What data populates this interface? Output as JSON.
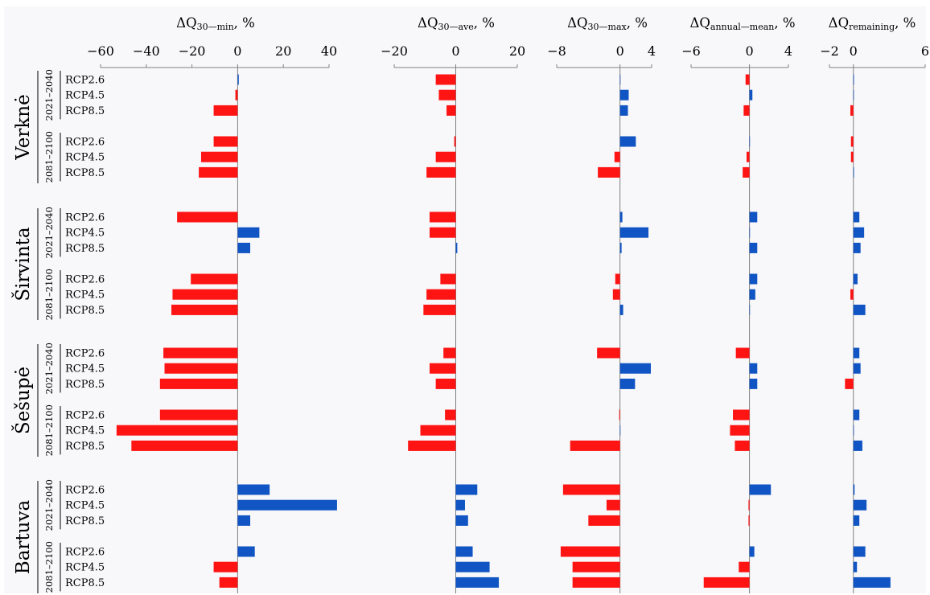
{
  "colors": {
    "positive": "#1155c4",
    "negative": "#ff1414",
    "axis": "#808080",
    "background": "#f8f8fa"
  },
  "chart_data": {
    "type": "bar",
    "orientation": "horizontal",
    "rows": [
      "RCP2.6",
      "RCP4.5",
      "RCP8.5"
    ],
    "periods": [
      "2021–2040",
      "2081–2100"
    ],
    "rivers": [
      "Verknė",
      "Širvinta",
      "Šešupė",
      "Bartuva"
    ],
    "panels": [
      {
        "title_main": "ΔQ",
        "title_sub": "30—min",
        "title_tail": ", %",
        "xlim": [
          -60,
          40
        ],
        "ticks": [
          -60,
          -40,
          -20,
          0,
          20,
          40
        ],
        "tick_labels": [
          "−60",
          "−40",
          "−20",
          "0",
          "20",
          "40"
        ],
        "values": [
          [
            0.5,
            -1,
            -10.5
          ],
          [
            -10.5,
            -16,
            -17
          ],
          [
            -26.5,
            9.5,
            5.5
          ],
          [
            -20.5,
            -28.5,
            -29
          ],
          [
            -32.5,
            -32,
            -34
          ],
          [
            -34,
            -53,
            -46.5
          ],
          [
            14,
            43.5,
            5.5
          ],
          [
            7.5,
            -10.5,
            -8
          ]
        ]
      },
      {
        "title_main": "ΔQ",
        "title_sub": "30—ave",
        "title_tail": ", %",
        "xlim": [
          -20,
          20
        ],
        "ticks": [
          -20,
          0,
          20
        ],
        "tick_labels": [
          "−20",
          "0",
          "20"
        ],
        "values": [
          [
            -6.5,
            -5.5,
            -3
          ],
          [
            -0.5,
            -6.5,
            -9.5
          ],
          [
            -8.5,
            -8.5,
            0.5
          ],
          [
            -5,
            -9.5,
            -10.5
          ],
          [
            -4,
            -8.5,
            -6.5
          ],
          [
            -3.5,
            -11.5,
            -15.5
          ],
          [
            7,
            3,
            4
          ],
          [
            5.5,
            11,
            14
          ]
        ]
      },
      {
        "title_main": "ΔQ",
        "title_sub": "30—max",
        "title_tail": ", %",
        "xlim": [
          -8,
          4
        ],
        "ticks": [
          -8,
          0,
          4
        ],
        "tick_labels": [
          "−8",
          "0",
          "4"
        ],
        "values": [
          [
            0,
            1.1,
            1
          ],
          [
            2,
            -0.7,
            -2.8
          ],
          [
            0.3,
            3.6,
            0.2
          ],
          [
            -0.6,
            -0.9,
            0.4
          ],
          [
            -2.9,
            3.9,
            1.9
          ],
          [
            -0.1,
            0,
            -6.3
          ],
          [
            -7.2,
            -1.7,
            -4
          ],
          [
            -7.5,
            -6,
            -6
          ]
        ]
      },
      {
        "title_main": "ΔQ",
        "title_sub": "annual—mean",
        "title_tail": ", %",
        "xlim": [
          -6,
          4
        ],
        "ticks": [
          -6,
          0,
          4
        ],
        "tick_labels": [
          "−6",
          "0",
          "4"
        ],
        "values": [
          [
            -0.4,
            0.3,
            -0.6
          ],
          [
            0,
            -0.3,
            -0.7
          ],
          [
            0.8,
            0,
            0.8
          ],
          [
            0.8,
            0.6,
            0
          ],
          [
            -1.4,
            0.8,
            0.8
          ],
          [
            -1.7,
            -2,
            -1.5
          ],
          [
            2.2,
            -0.1,
            -0.1
          ],
          [
            0.5,
            -1.1,
            -4.7
          ]
        ]
      },
      {
        "title_main": "ΔQ",
        "title_sub": "remaining",
        "title_tail": ", %",
        "xlim": [
          -2,
          6
        ],
        "ticks": [
          -2,
          0,
          6
        ],
        "tick_labels": [
          "−2",
          "0",
          "6"
        ],
        "values": [
          [
            0.05,
            0,
            -0.25
          ],
          [
            -0.2,
            -0.2,
            0.05
          ],
          [
            0.5,
            0.9,
            0.6
          ],
          [
            0.35,
            -0.25,
            1
          ],
          [
            0.5,
            0.6,
            -0.7
          ],
          [
            0.5,
            0,
            0.75
          ],
          [
            0.1,
            1.1,
            0.5
          ],
          [
            1,
            0.3,
            3.1
          ]
        ]
      }
    ]
  }
}
